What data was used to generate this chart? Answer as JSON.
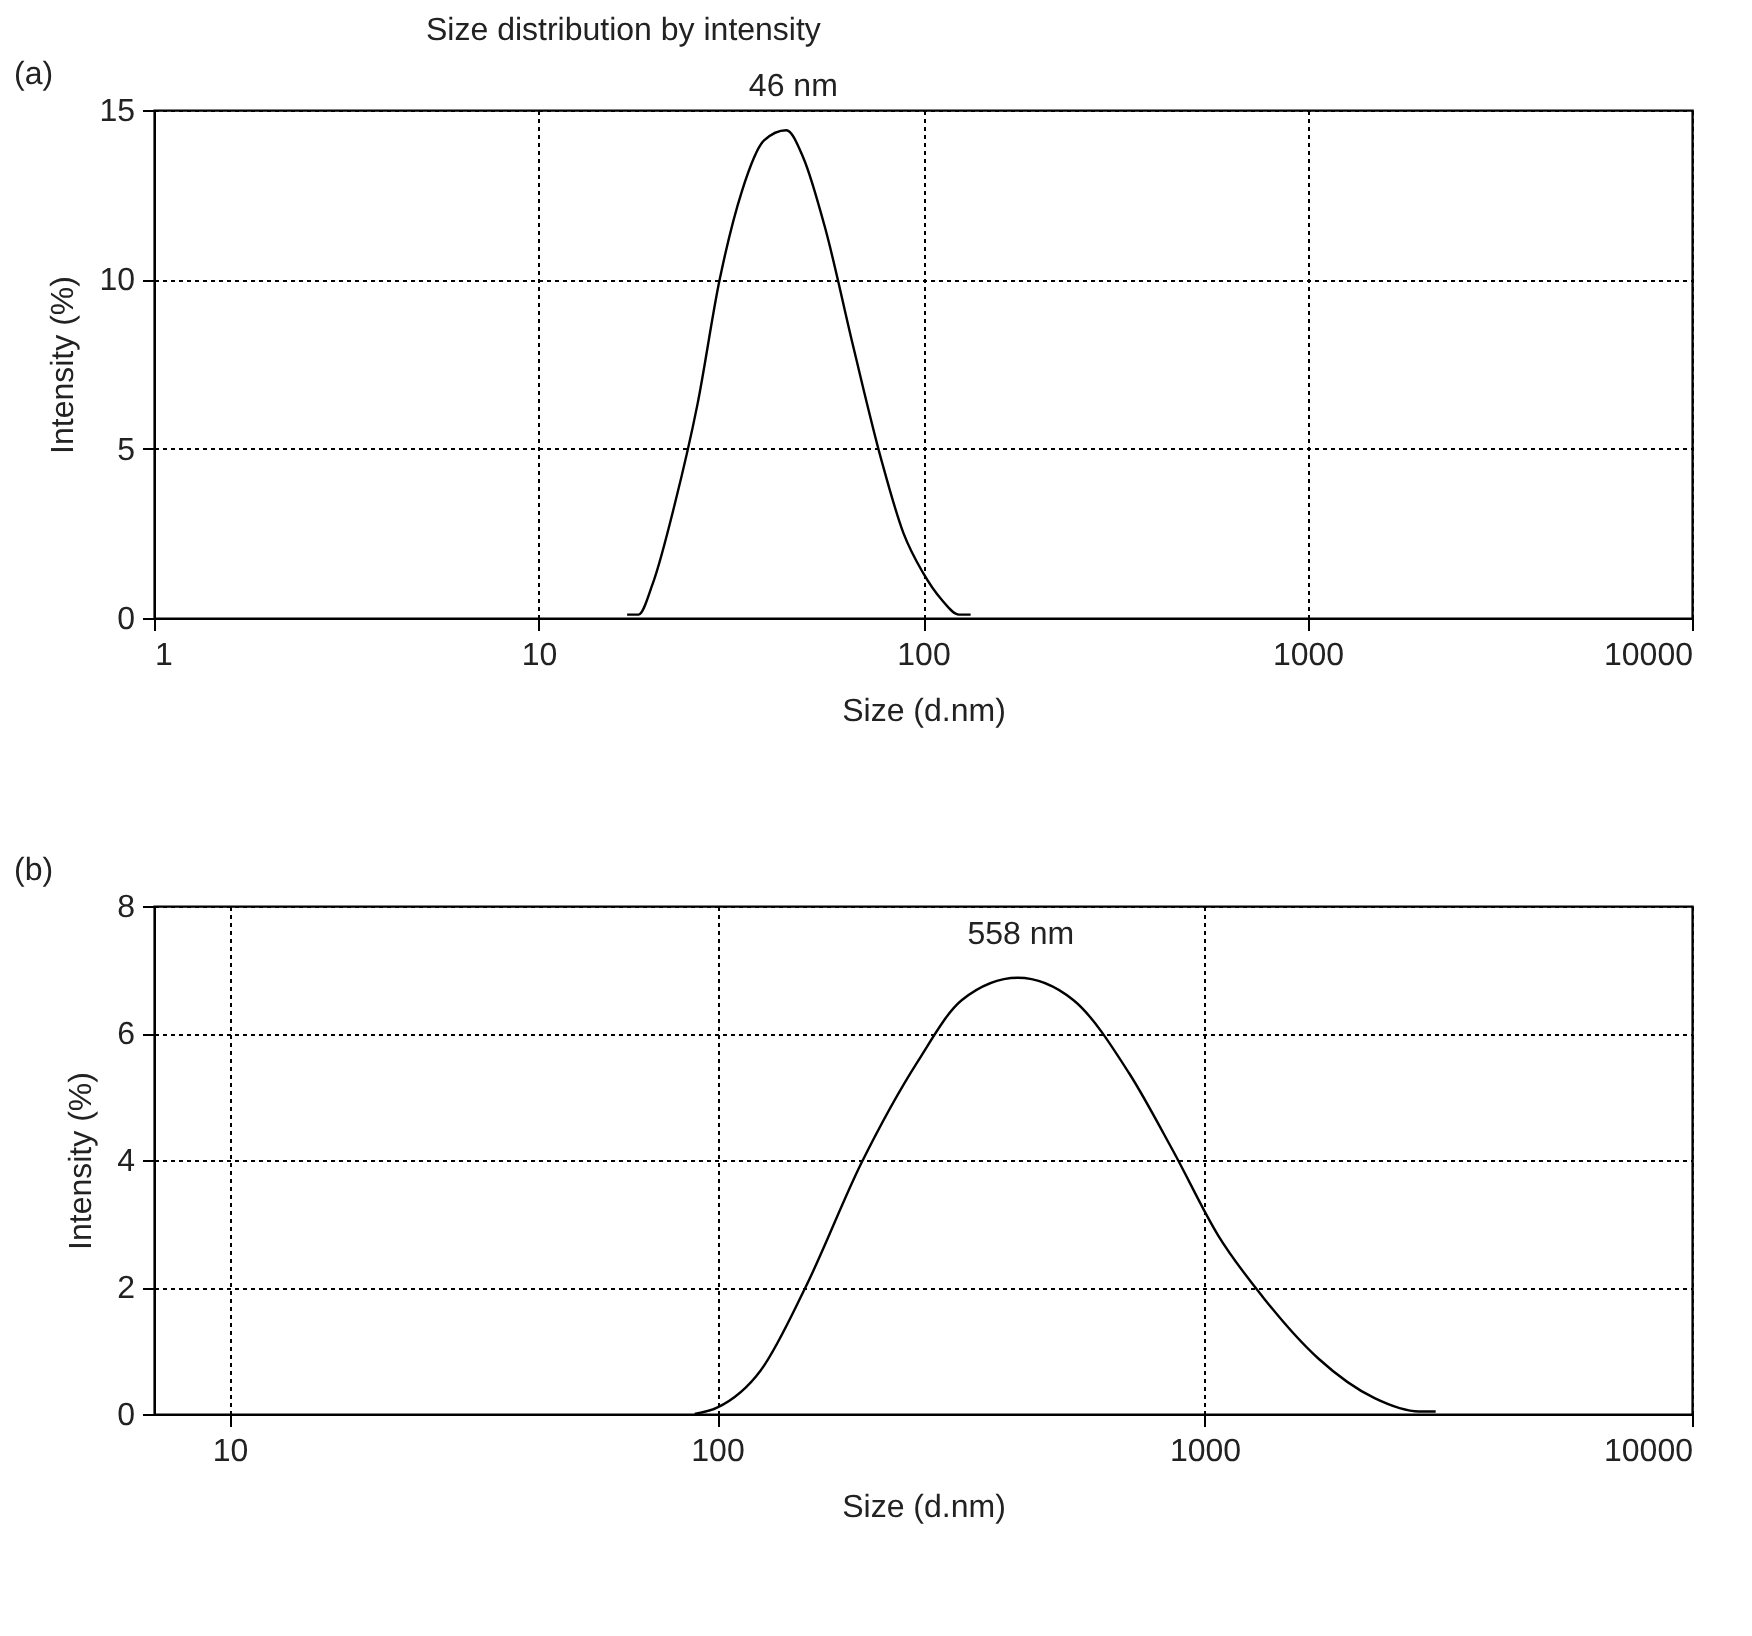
{
  "chart_data": [
    {
      "type": "line",
      "title": "Size distribution by intensity",
      "annotations": [
        "(a)",
        {
          "text": "46 nm",
          "x": 46,
          "y": 14.4
        }
      ],
      "xlabel": "Size (d.nm)",
      "ylabel": "Intensity (%)",
      "log": "x",
      "grid": true,
      "xlim": [
        1,
        10000
      ],
      "xticks": [
        1,
        10,
        100,
        1000,
        10000
      ],
      "ylim": [
        0,
        15
      ],
      "yticks": [
        0,
        5,
        10,
        15
      ],
      "x": [
        17,
        18.2,
        19.8,
        22.6,
        25.9,
        29.6,
        33.8,
        38.6,
        44.1,
        48.8,
        55.7,
        65.9,
        77.8,
        89,
        99.7,
        112,
        124,
        133
      ],
      "series": [
        {
          "color": "#000000",
          "values": [
            0.1,
            0.1,
            1.0,
            3.35,
            6.3,
            10,
            12.6,
            14.1,
            14.4,
            13.6,
            11.5,
            8.0,
            4.7,
            2.5,
            1.36,
            0.53,
            0.1,
            0.1
          ]
        }
      ]
    },
    {
      "type": "line",
      "annotations": [
        "(b)",
        {
          "text": "558 nm",
          "x": 420,
          "y": 6.87
        }
      ],
      "xlabel": "Size (d.nm)",
      "ylabel": "Intensity (%)",
      "log": "x",
      "grid": true,
      "xlim": [
        7,
        10000
      ],
      "xticks": [
        10,
        100,
        1000,
        10000
      ],
      "ylim": [
        0,
        8
      ],
      "yticks": [
        0,
        2,
        4,
        6,
        8
      ],
      "x": [
        90,
        100,
        123,
        152,
        198,
        258,
        318,
        414,
        538,
        700,
        864,
        1067,
        1318,
        1714,
        2233,
        2754,
        2980
      ],
      "series": [
        {
          "color": "#000000",
          "values": [
            0,
            0.1,
            0.69,
            2.0,
            3.96,
            5.55,
            6.52,
            6.87,
            6.52,
            5.37,
            4.13,
            2.81,
            1.84,
            0.87,
            0.25,
            0.04,
            0.04
          ]
        }
      ]
    }
  ]
}
